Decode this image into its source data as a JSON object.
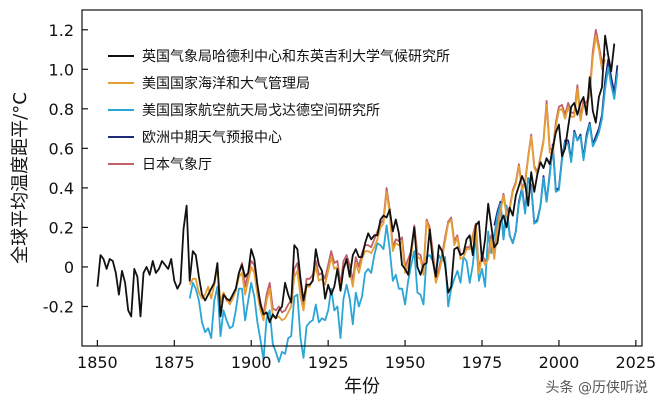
{
  "chart_data": {
    "type": "line",
    "xlabel": "年份",
    "ylabel": "全球平均温度距平/°C",
    "xlim": [
      1845,
      2027
    ],
    "ylim": [
      -0.4,
      1.3
    ],
    "xticks": [
      1850,
      1875,
      1900,
      1925,
      1950,
      1975,
      2000,
      2025
    ],
    "yticks": [
      -0.2,
      0,
      0.2,
      0.4,
      0.6,
      0.8,
      1.0,
      1.2
    ],
    "ytick_labels": [
      "-0.2",
      "0",
      "0.2",
      "0.4",
      "0.6",
      "0.8",
      "1.0",
      "1.2"
    ],
    "legend_position": "top-left",
    "grid": false,
    "series": [
      {
        "name": "英国气象局哈德利中心和东英吉利大学气候研究所",
        "color": "#111111",
        "x_start": 1850,
        "values": [
          -0.1,
          0.06,
          0.04,
          -0.01,
          0.04,
          0.03,
          -0.03,
          -0.14,
          -0.02,
          -0.08,
          -0.22,
          -0.25,
          -0.01,
          -0.05,
          -0.25,
          -0.03,
          0.0,
          -0.04,
          0.03,
          -0.03,
          -0.01,
          0.03,
          0.01,
          -0.01,
          0.04,
          -0.07,
          -0.11,
          -0.08,
          0.19,
          0.31,
          -0.07,
          0.08,
          0.06,
          -0.05,
          -0.14,
          -0.17,
          -0.14,
          -0.11,
          -0.08,
          0.02,
          -0.25,
          -0.14,
          -0.16,
          -0.17,
          -0.14,
          -0.11,
          -0.03,
          0.01,
          -0.05,
          -0.03,
          0.09,
          0.04,
          -0.09,
          -0.19,
          -0.24,
          -0.23,
          -0.28,
          -0.24,
          -0.26,
          -0.22,
          -0.2,
          -0.08,
          -0.14,
          -0.18,
          0.11,
          0.09,
          -0.06,
          -0.17,
          -0.09,
          -0.09,
          -0.07,
          0.09,
          0.01,
          -0.02,
          -0.16,
          -0.09,
          -0.14,
          -0.1,
          -0.01,
          -0.12,
          -0.01,
          0.04,
          -0.05,
          0.06,
          0.09,
          0.05,
          0.05,
          0.12,
          0.17,
          0.14,
          0.16,
          0.16,
          0.24,
          0.26,
          0.25,
          0.29,
          0.18,
          0.24,
          0.17,
          0.01,
          -0.01,
          -0.04,
          0.09,
          0.2,
          0.0,
          -0.04,
          0.01,
          0.02,
          0.19,
          0.03,
          -0.05,
          0.11,
          0.08,
          0.01,
          -0.13,
          -0.1,
          0.09,
          0.1,
          0.06,
          0.07,
          0.14,
          0.16,
          0.06,
          0.21,
          0.23,
          0.03,
          0.14,
          0.32,
          0.21,
          0.1,
          0.12,
          0.23,
          0.26,
          0.2,
          0.3,
          0.26,
          0.36,
          0.41,
          0.46,
          0.42,
          0.31,
          0.48,
          0.38,
          0.47,
          0.53,
          0.5,
          0.55,
          0.52,
          0.6,
          0.68,
          0.72,
          0.56,
          0.6,
          0.71,
          0.81,
          0.83,
          0.77,
          0.83,
          0.86,
          0.77,
          0.96,
          0.79,
          0.73,
          0.86,
          0.91,
          1.17,
          1.07,
          0.99,
          1.13
        ]
      },
      {
        "name": "美国国家海洋和大气管理局",
        "color": "#e69f35",
        "x_start": 1880,
        "values": [
          -0.09,
          -0.06,
          -0.06,
          -0.13,
          -0.16,
          -0.14,
          -0.1,
          -0.16,
          -0.09,
          0.0,
          -0.18,
          -0.13,
          -0.16,
          -0.19,
          -0.16,
          -0.12,
          -0.05,
          -0.03,
          -0.14,
          -0.07,
          0.0,
          -0.03,
          -0.14,
          -0.22,
          -0.27,
          -0.17,
          -0.11,
          -0.25,
          -0.26,
          -0.25,
          -0.27,
          -0.26,
          -0.23,
          -0.2,
          -0.05,
          -0.02,
          -0.15,
          -0.22,
          -0.1,
          -0.1,
          -0.06,
          0.0,
          -0.07,
          -0.06,
          -0.09,
          -0.02,
          0.05,
          -0.01,
          0.0,
          -0.12,
          -0.01,
          0.03,
          -0.02,
          -0.1,
          0.02,
          -0.03,
          0.04,
          0.08,
          0.08,
          0.07,
          0.1,
          0.14,
          0.2,
          0.22,
          0.38,
          0.27,
          0.08,
          0.12,
          0.11,
          0.13,
          -0.03,
          0.01,
          0.06,
          0.19,
          0.05,
          0.04,
          -0.04,
          0.23,
          0.18,
          0.05,
          -0.08,
          -0.03,
          0.04,
          0.13,
          0.22,
          0.24,
          0.11,
          0.15,
          0.04,
          0.05,
          0.09,
          0.09,
          0.15,
          0.21,
          -0.03,
          0.05,
          0.01,
          0.04,
          0.14,
          0.04,
          0.19,
          0.28,
          0.36,
          0.26,
          0.29,
          0.38,
          0.42,
          0.51,
          0.39,
          0.42,
          0.55,
          0.66,
          0.5,
          0.47,
          0.55,
          0.63,
          0.82,
          0.58,
          0.57,
          0.71,
          0.79,
          0.8,
          0.75,
          0.81,
          0.76,
          0.76,
          0.9,
          0.74,
          0.82,
          0.81,
          0.87,
          1.06,
          1.17,
          1.1,
          1.0,
          1.05
        ]
      },
      {
        "name": "美国国家航空航天局戈达德空间研究所",
        "color": "#2aa6d6",
        "x_start": 1880,
        "values": [
          -0.16,
          -0.08,
          -0.11,
          -0.17,
          -0.28,
          -0.33,
          -0.31,
          -0.36,
          -0.17,
          -0.1,
          -0.35,
          -0.22,
          -0.27,
          -0.31,
          -0.3,
          -0.22,
          -0.11,
          -0.11,
          -0.27,
          -0.17,
          -0.08,
          -0.15,
          -0.28,
          -0.37,
          -0.47,
          -0.26,
          -0.22,
          -0.39,
          -0.43,
          -0.48,
          -0.43,
          -0.44,
          -0.36,
          -0.35,
          -0.15,
          -0.14,
          -0.36,
          -0.46,
          -0.3,
          -0.28,
          -0.27,
          -0.19,
          -0.28,
          -0.26,
          -0.27,
          -0.22,
          -0.11,
          -0.22,
          -0.2,
          -0.36,
          -0.16,
          -0.09,
          -0.16,
          -0.29,
          -0.13,
          -0.2,
          -0.15,
          -0.03,
          -0.01,
          -0.03,
          0.06,
          0.12,
          0.11,
          0.09,
          0.21,
          0.09,
          -0.07,
          -0.04,
          -0.11,
          -0.11,
          -0.19,
          -0.07,
          0.01,
          0.08,
          -0.13,
          -0.14,
          -0.19,
          0.05,
          0.06,
          0.03,
          -0.03,
          0.06,
          0.03,
          0.05,
          -0.2,
          -0.11,
          -0.06,
          -0.02,
          -0.08,
          0.05,
          0.03,
          -0.08,
          0.01,
          0.16,
          -0.07,
          -0.01,
          -0.1,
          0.18,
          0.07,
          0.16,
          0.26,
          0.32,
          0.14,
          0.31,
          0.16,
          0.12,
          0.18,
          0.32,
          0.39,
          0.27,
          0.45,
          0.4,
          0.22,
          0.23,
          0.31,
          0.45,
          0.33,
          0.46,
          0.61,
          0.38,
          0.39,
          0.54,
          0.63,
          0.62,
          0.53,
          0.68,
          0.64,
          0.66,
          0.54,
          0.65,
          0.72,
          0.61,
          0.64,
          0.68,
          0.75,
          0.9,
          1.01,
          0.92,
          0.85,
          0.98
        ]
      },
      {
        "name": "欧洲中期天气预报中心",
        "color": "#1f2a7a",
        "x_start": 1979,
        "values": [
          0.21,
          0.28,
          0.33,
          0.14,
          0.31,
          0.16,
          0.12,
          0.18,
          0.33,
          0.4,
          0.28,
          0.45,
          0.41,
          0.22,
          0.24,
          0.31,
          0.46,
          0.33,
          0.47,
          0.62,
          0.39,
          0.4,
          0.55,
          0.64,
          0.64,
          0.54,
          0.69,
          0.64,
          0.67,
          0.55,
          0.67,
          0.73,
          0.62,
          0.66,
          0.7,
          0.77,
          0.94,
          1.05,
          0.96,
          0.88,
          1.02
        ]
      },
      {
        "name": "日本气象厅",
        "color": "#c0606a",
        "x_start": 1891,
        "values": [
          -0.13,
          -0.17,
          -0.18,
          -0.15,
          -0.12,
          -0.03,
          0.02,
          -0.1,
          -0.03,
          0.03,
          0.01,
          -0.1,
          -0.18,
          -0.24,
          -0.14,
          -0.08,
          -0.21,
          -0.22,
          -0.2,
          -0.23,
          -0.22,
          -0.19,
          -0.17,
          -0.01,
          0.02,
          -0.11,
          -0.19,
          -0.06,
          -0.06,
          -0.04,
          0.03,
          -0.04,
          -0.03,
          -0.06,
          0.01,
          0.08,
          0.02,
          0.03,
          -0.09,
          0.03,
          0.06,
          0.01,
          -0.07,
          0.05,
          0.0,
          0.07,
          0.11,
          0.11,
          0.1,
          0.14,
          0.18,
          0.22,
          0.24,
          0.4,
          0.29,
          0.1,
          0.14,
          0.13,
          0.15,
          0.0,
          0.04,
          0.08,
          0.21,
          0.07,
          0.06,
          -0.02,
          0.24,
          0.2,
          0.08,
          -0.06,
          -0.01,
          0.06,
          0.15,
          0.23,
          0.25,
          0.13,
          0.16,
          0.06,
          0.07,
          0.1,
          0.1,
          0.16,
          0.22,
          -0.01,
          0.06,
          0.03,
          0.05,
          0.16,
          0.06,
          0.21,
          0.29,
          0.37,
          0.27,
          0.3,
          0.39,
          0.43,
          0.52,
          0.4,
          0.43,
          0.56,
          0.67,
          0.51,
          0.48,
          0.56,
          0.64,
          0.84,
          0.6,
          0.59,
          0.73,
          0.81,
          0.82,
          0.77,
          0.83,
          0.78,
          0.78,
          0.92,
          0.76,
          0.84,
          0.83,
          0.89,
          1.09,
          1.2,
          1.12,
          1.03,
          1.08
        ]
      }
    ]
  },
  "watermark": "头条 @历侠听说"
}
